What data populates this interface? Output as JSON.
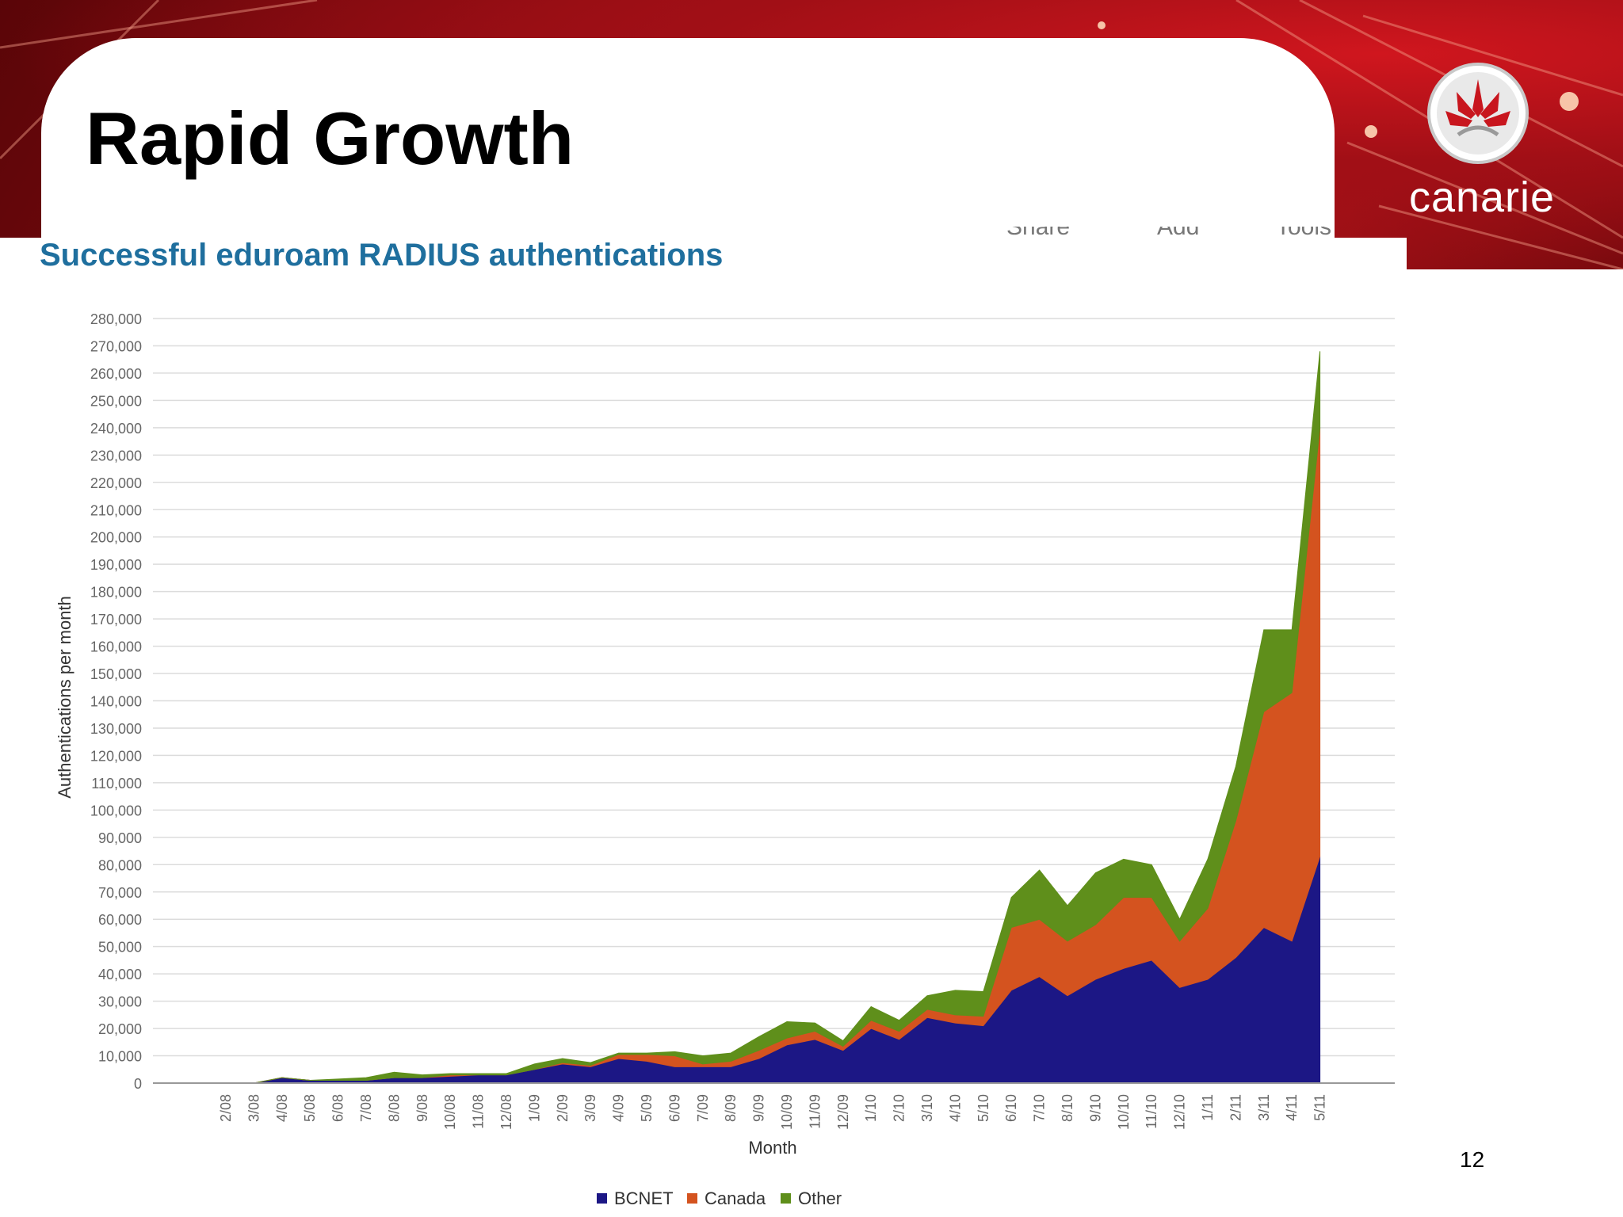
{
  "slide": {
    "title": "Rapid Growth",
    "page_number": "12",
    "logo_text": "canarie",
    "toolbar": [
      "Share",
      "Add",
      "Tools"
    ]
  },
  "colors": {
    "bcnet": "#1c1785",
    "canada": "#d4531f",
    "other": "#5f8f1b",
    "title_blue": "#1f6f9e",
    "banner_red": "#b8141b"
  },
  "chart_data": {
    "type": "area",
    "stacked": true,
    "title": "Successful eduroam RADIUS authentications",
    "xlabel": "Month",
    "ylabel": "Authentications per month",
    "ylim": [
      0,
      280000
    ],
    "y_ticks": [
      0,
      10000,
      20000,
      30000,
      40000,
      50000,
      60000,
      70000,
      80000,
      90000,
      100000,
      110000,
      120000,
      130000,
      140000,
      150000,
      160000,
      170000,
      180000,
      190000,
      200000,
      210000,
      220000,
      230000,
      240000,
      250000,
      260000,
      270000,
      280000
    ],
    "y_tick_labels": [
      "0",
      "10,000",
      "20,000",
      "30,000",
      "40,000",
      "50,000",
      "60,000",
      "70,000",
      "80,000",
      "90,000",
      "100,000",
      "110,000",
      "120,000",
      "130,000",
      "140,000",
      "150,000",
      "160,000",
      "170,000",
      "180,000",
      "190,000",
      "200,000",
      "210,000",
      "220,000",
      "230,000",
      "240,000",
      "250,000",
      "260,000",
      "270,000",
      "280,000"
    ],
    "categories": [
      "2/08",
      "3/08",
      "4/08",
      "5/08",
      "6/08",
      "7/08",
      "8/08",
      "9/08",
      "10/08",
      "11/08",
      "12/08",
      "1/09",
      "2/09",
      "3/09",
      "4/09",
      "5/09",
      "6/09",
      "7/09",
      "8/09",
      "9/09",
      "10/09",
      "11/09",
      "12/09",
      "1/10",
      "2/10",
      "3/10",
      "4/10",
      "5/10",
      "6/10",
      "7/10",
      "8/10",
      "9/10",
      "10/10",
      "11/10",
      "12/10",
      "1/11",
      "2/11",
      "3/11",
      "4/11",
      "5/11"
    ],
    "series": [
      {
        "name": "BCNET",
        "values": [
          0,
          0,
          2000,
          1000,
          1000,
          1000,
          2000,
          2000,
          2500,
          3000,
          3000,
          5000,
          7000,
          6000,
          9000,
          8000,
          6000,
          6000,
          6000,
          9000,
          14000,
          16000,
          12000,
          20000,
          16000,
          24000,
          22000,
          21000,
          34000,
          39000,
          32000,
          38000,
          42000,
          45000,
          35000,
          38000,
          46000,
          57000,
          52000,
          83000
        ]
      },
      {
        "name": "Canada",
        "values": [
          0,
          0,
          0,
          0,
          0,
          0,
          0,
          0,
          500,
          0,
          0,
          0,
          500,
          500,
          1500,
          2500,
          4000,
          1000,
          2000,
          3000,
          2500,
          3000,
          1500,
          3000,
          3000,
          3000,
          3000,
          3500,
          23000,
          21000,
          20000,
          20000,
          26000,
          23000,
          17000,
          26000,
          50000,
          79000,
          91000,
          157000
        ]
      },
      {
        "name": "Other",
        "values": [
          0,
          0,
          0,
          0,
          500,
          1000,
          2000,
          1000,
          500,
          500,
          500,
          2000,
          1500,
          1000,
          500,
          500,
          1500,
          3000,
          3000,
          5000,
          6000,
          3000,
          2000,
          5000,
          4000,
          5000,
          9000,
          9000,
          11000,
          18000,
          13000,
          19000,
          14000,
          12000,
          8000,
          18000,
          20000,
          30000,
          23000,
          28000
        ]
      }
    ],
    "legend": {
      "position": "bottom-center",
      "entries": [
        "BCNET",
        "Canada",
        "Other"
      ]
    },
    "grid": true
  }
}
